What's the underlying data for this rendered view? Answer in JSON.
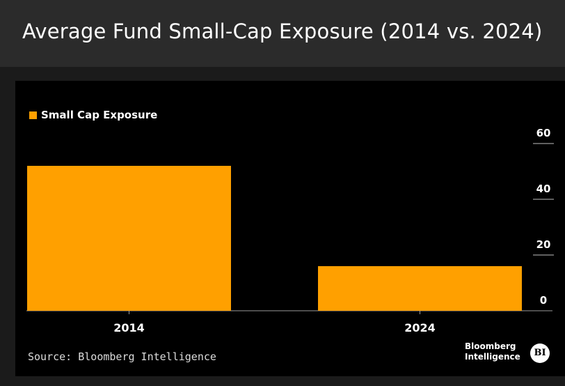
{
  "title": "Average Fund Small-Cap Exposure (2014 vs. 2024)",
  "colors": {
    "bar": "#ffa000",
    "background": "#000000",
    "header": "#2b2b2b"
  },
  "chart_data": {
    "type": "bar",
    "categories": [
      "2014",
      "2024"
    ],
    "series": [
      {
        "name": "Small Cap Exposure",
        "values": [
          52,
          16
        ]
      }
    ],
    "yticks": [
      0,
      20,
      40,
      60
    ],
    "ylim": [
      0,
      60
    ],
    "y_axis_position": "right",
    "legend_position": "top-left",
    "grid": false
  },
  "source": "Source: Bloomberg Intelligence",
  "brand": {
    "line1": "Bloomberg",
    "line2": "Intelligence",
    "badge": "BI"
  }
}
